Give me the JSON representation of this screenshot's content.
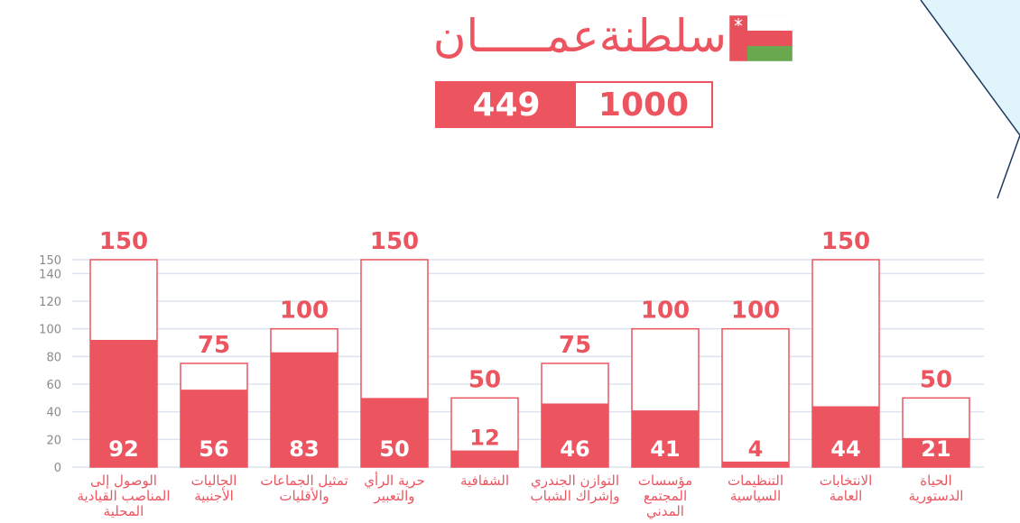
{
  "header": {
    "title": "سلطنةعمـــــان",
    "score_achieved": "449",
    "score_max": "1000"
  },
  "colors": {
    "accent": "#ec5560",
    "grid": "#dde3ee",
    "flag_red": "#e8505b",
    "flag_green": "#6aa84f"
  },
  "icons": {
    "flag": "oman-flag-icon"
  },
  "chart_data": {
    "type": "bar",
    "ylim": [
      0,
      150
    ],
    "yticks": [
      0,
      20,
      40,
      60,
      80,
      100,
      120,
      140,
      150
    ],
    "grid": true,
    "categories": [
      [
        "الوصول إلى",
        "المناصب القيادية",
        "المحلية"
      ],
      [
        "الجاليات",
        "الأجنبية"
      ],
      [
        "تمثيل الجماعات",
        "والأقليات"
      ],
      [
        "حرية الرأي",
        "والتعبير"
      ],
      [
        "الشفافية"
      ],
      [
        "التوازن الجندري",
        "وإشراك الشباب"
      ],
      [
        "مؤسسات",
        "المجتمع",
        "المدني"
      ],
      [
        "التنظيمات",
        "السياسية"
      ],
      [
        "الانتخابات",
        "العامة"
      ],
      [
        "الحياة",
        "الدستورية"
      ]
    ],
    "series": [
      {
        "values": [
          92,
          56,
          83,
          50,
          12,
          46,
          41,
          4,
          44,
          21
        ]
      },
      {
        "values": [
          150,
          75,
          100,
          150,
          50,
          75,
          100,
          100,
          150,
          50
        ]
      }
    ]
  }
}
